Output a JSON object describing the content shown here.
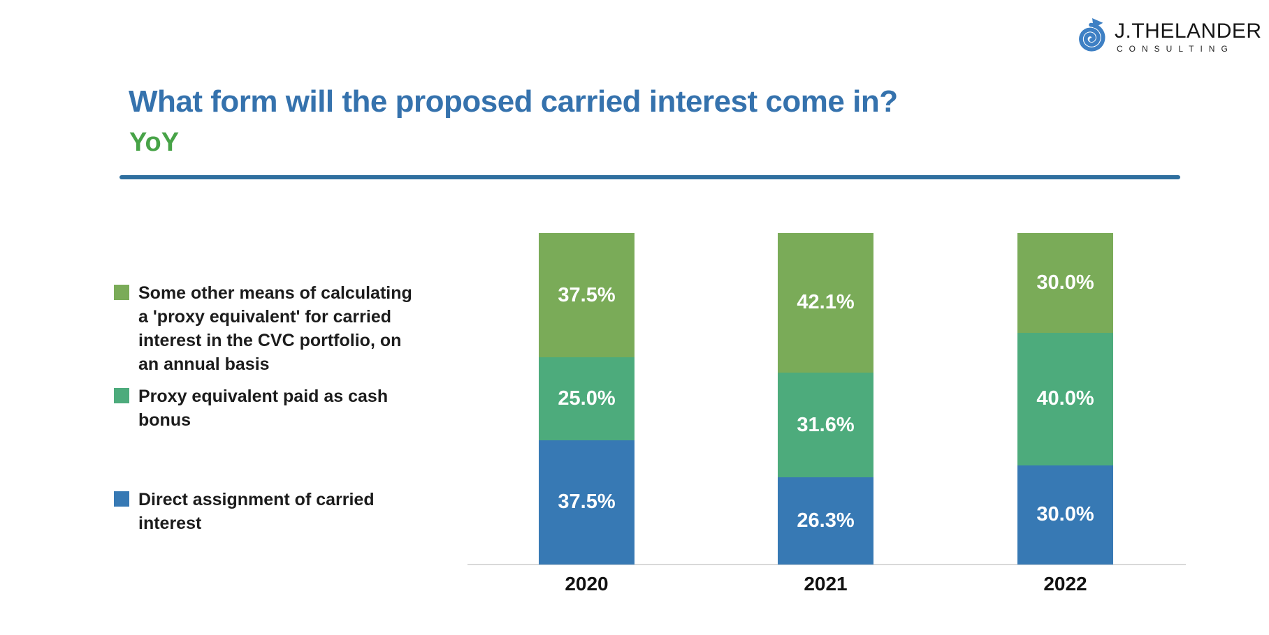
{
  "logo": {
    "name": "J.THELANDER",
    "tagline": "CONSULTING",
    "icon": "spiral-arrow-icon",
    "icon_color": "#3e80c4"
  },
  "header": {
    "title": "What form will the proposed carried interest come in?",
    "subtitle": "YoY",
    "title_color": "#3572ad",
    "subtitle_color": "#47a347",
    "divider_color": "#2f6f9f"
  },
  "chart_data": {
    "type": "bar",
    "stacked": true,
    "title": "What form will the proposed carried interest come in? YoY",
    "categories": [
      "2020",
      "2021",
      "2022"
    ],
    "series": [
      {
        "name": "Direct assignment of carried interest",
        "color": "#3779b4",
        "values": [
          37.5,
          26.3,
          30.0
        ],
        "labels": [
          "37.5%",
          "26.3%",
          "30.0%"
        ]
      },
      {
        "name": "Proxy equivalent paid as cash bonus",
        "color": "#4dab7c",
        "values": [
          25.0,
          31.6,
          40.0
        ],
        "labels": [
          "25.0%",
          "31.6%",
          "40.0%"
        ]
      },
      {
        "name": "Some other means of calculating a 'proxy equivalent' for carried interest in the CVC portfolio, on an annual basis",
        "color": "#7aab58",
        "values": [
          37.5,
          42.1,
          30.0
        ],
        "labels": [
          "37.5%",
          "42.1%",
          "30.0%"
        ]
      }
    ],
    "ylim": [
      0,
      100
    ],
    "value_format": "percent_1dp",
    "grid": false,
    "legend_position": "left",
    "legend_order_top_to_bottom": [
      2,
      1,
      0
    ],
    "axis_line_color": "#d9d9d9"
  }
}
